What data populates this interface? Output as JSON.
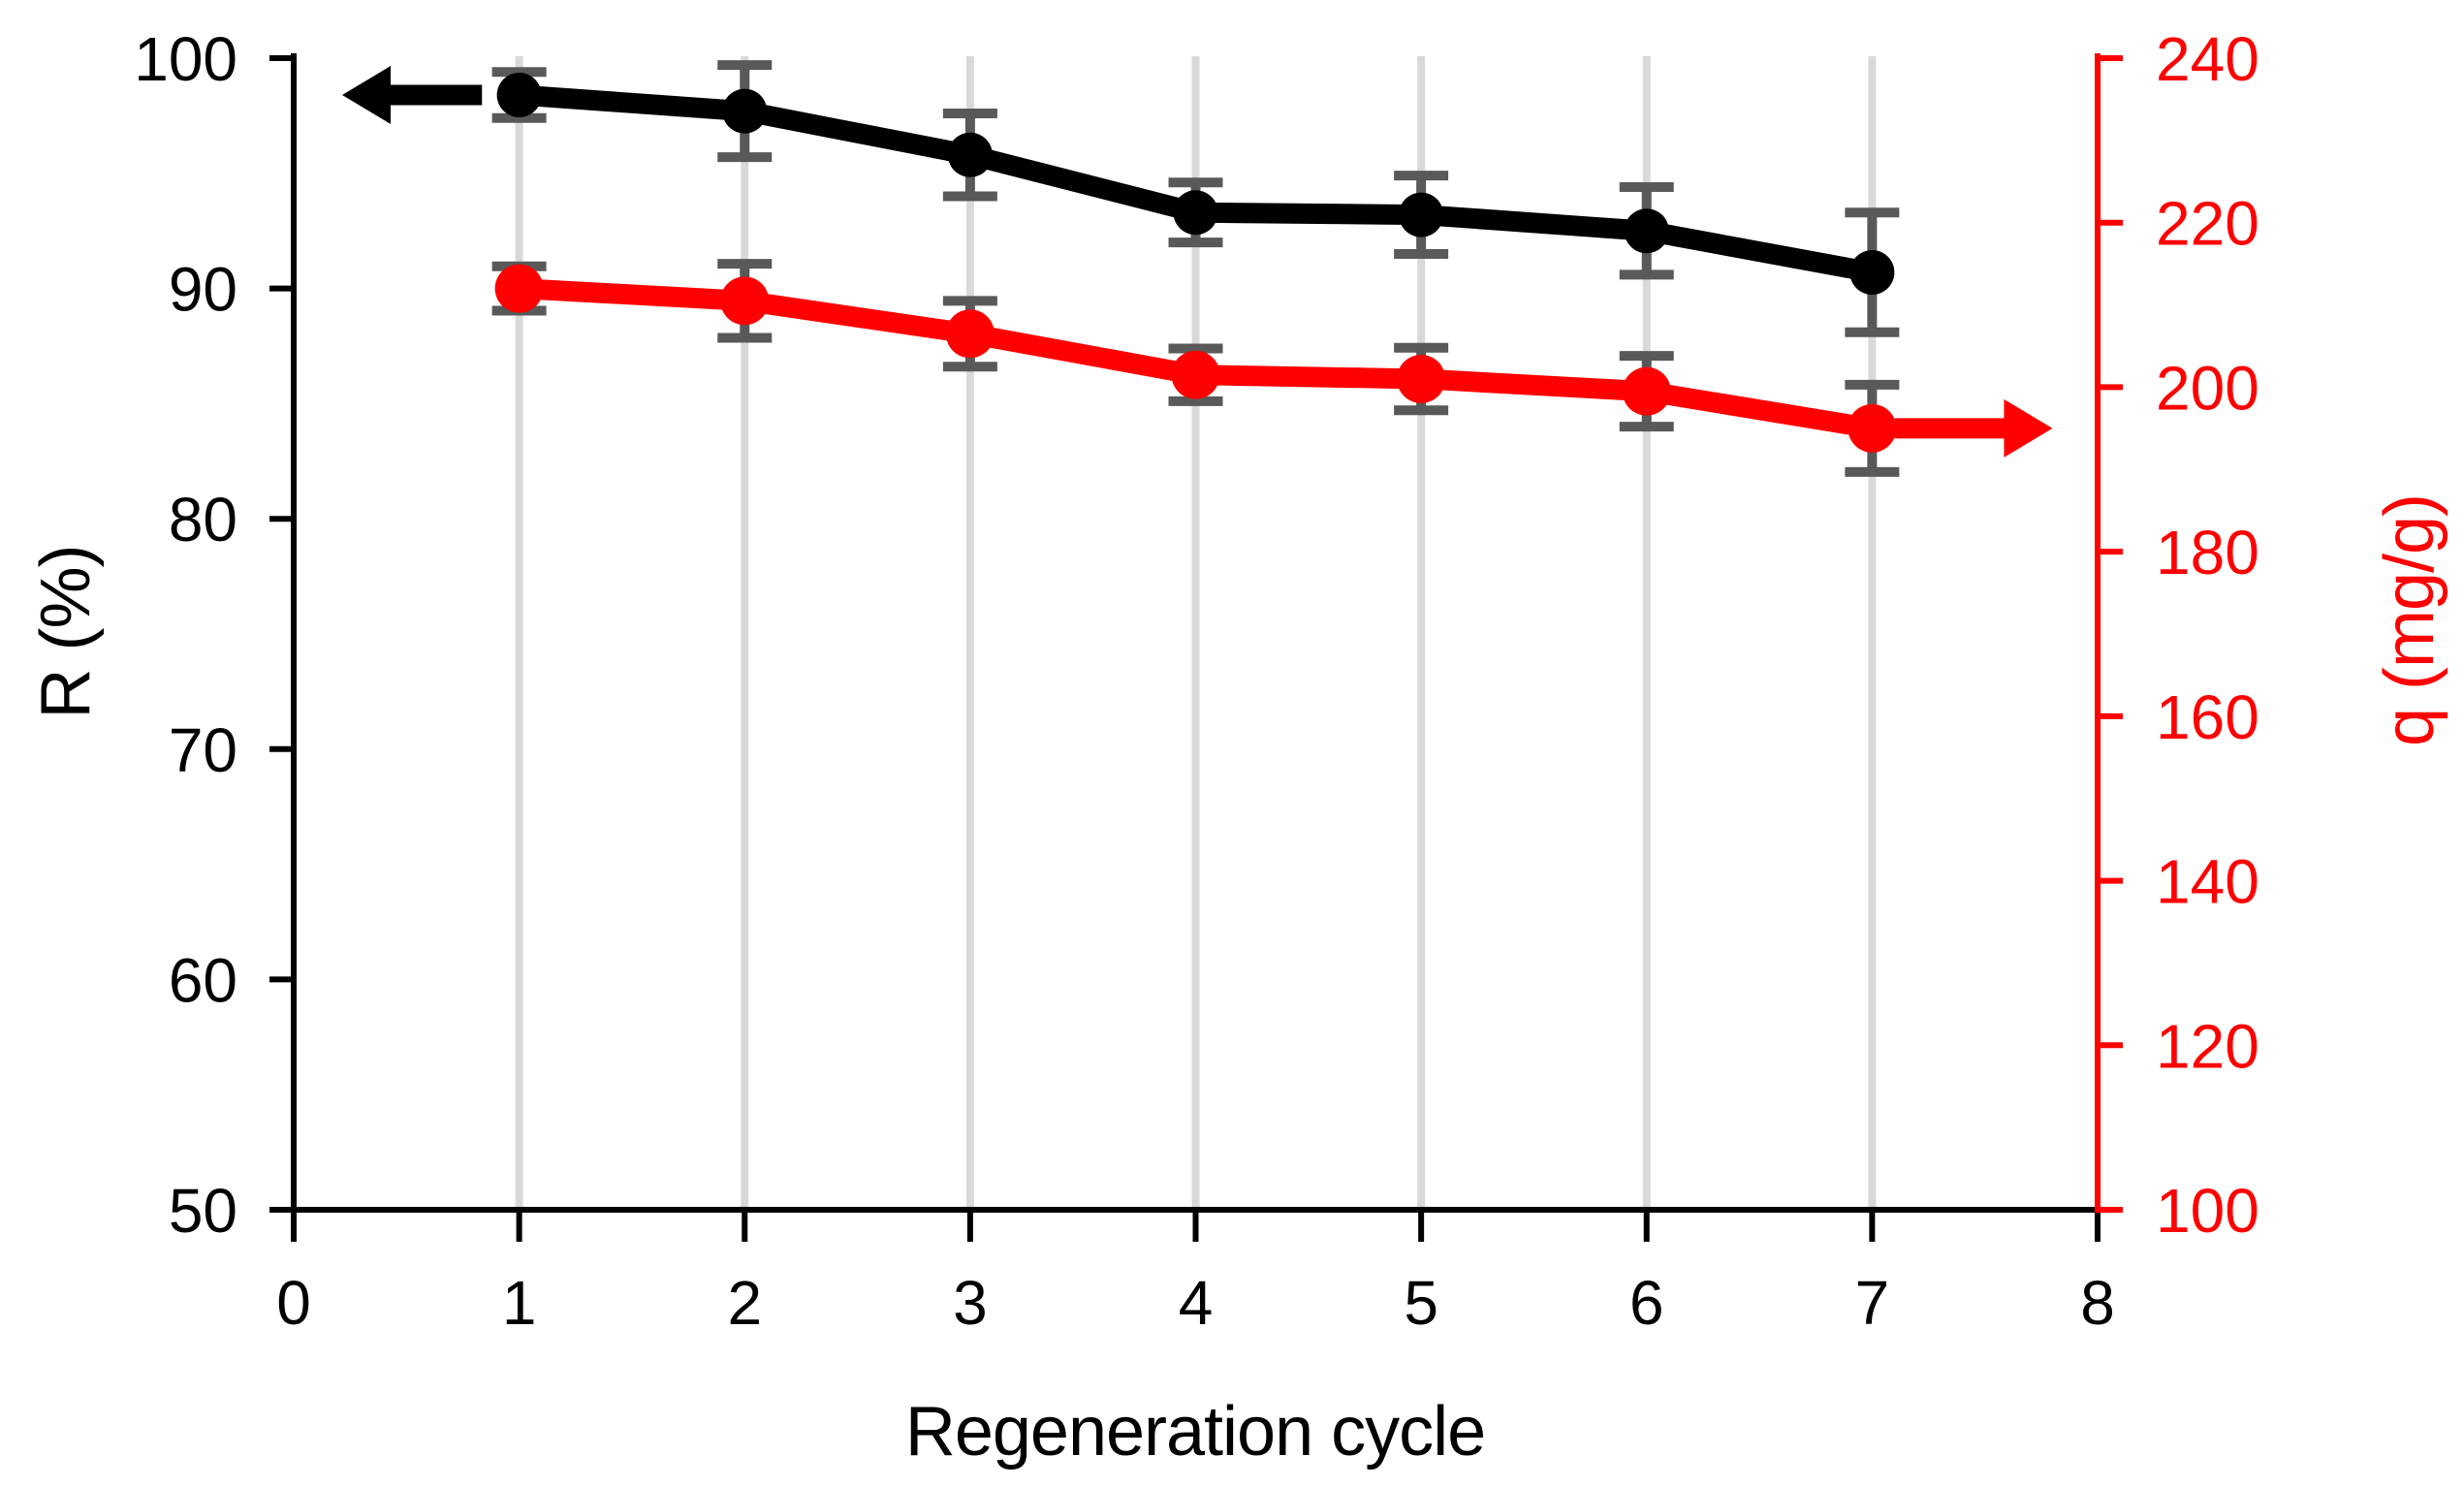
{
  "chart_data": {
    "type": "line",
    "title": "",
    "xlabel": "Regeneration cycle",
    "ylabel_left": "R (%)",
    "ylabel_right": "q (mg/g)",
    "xlim": [
      0,
      8
    ],
    "x_ticks": [
      0,
      1,
      2,
      3,
      4,
      5,
      6,
      7,
      8
    ],
    "x_gridlines": [
      1,
      2,
      3,
      4,
      5,
      6,
      7
    ],
    "left_ylim": [
      50,
      100
    ],
    "left_ticks": [
      50,
      60,
      70,
      80,
      90,
      100
    ],
    "right_ylim": [
      100,
      240
    ],
    "right_ticks": [
      100,
      120,
      140,
      160,
      180,
      200,
      220,
      240
    ],
    "grid": "vertical-only",
    "legend": "none",
    "gridline_color": "#D9D9D9",
    "error_bar_color": "#595959",
    "left_axis_color": "#000000",
    "right_axis_color": "#FF0000",
    "x": [
      1,
      2,
      3,
      4,
      5,
      6,
      7
    ],
    "series": [
      {
        "name": "R",
        "axis": "left",
        "color": "#000000",
        "marker": "circle",
        "marker_radius": 23,
        "values": [
          98.4,
          97.7,
          95.8,
          93.3,
          93.2,
          92.5,
          90.7
        ],
        "errors": [
          1.0,
          2.0,
          1.8,
          1.3,
          1.7,
          1.9,
          2.6
        ]
      },
      {
        "name": "q",
        "axis": "right",
        "color": "#FF0000",
        "marker": "circle",
        "marker_radius": 25,
        "values": [
          212,
          210.5,
          206.5,
          201.5,
          201,
          199.5,
          195
        ],
        "errors": [
          2.7,
          4.5,
          4.0,
          3.2,
          3.8,
          4.3,
          5.3
        ]
      }
    ],
    "annotations": [
      {
        "type": "arrow",
        "direction": "left",
        "series": "R",
        "color": "#000000",
        "at_value": 98.4,
        "x_tail": 0.835,
        "x_tip": 0.215
      },
      {
        "type": "arrow",
        "direction": "right",
        "series": "q",
        "color": "#FF0000",
        "at_value": 195,
        "x_tail": 7.1,
        "x_tip": 7.8
      }
    ]
  }
}
